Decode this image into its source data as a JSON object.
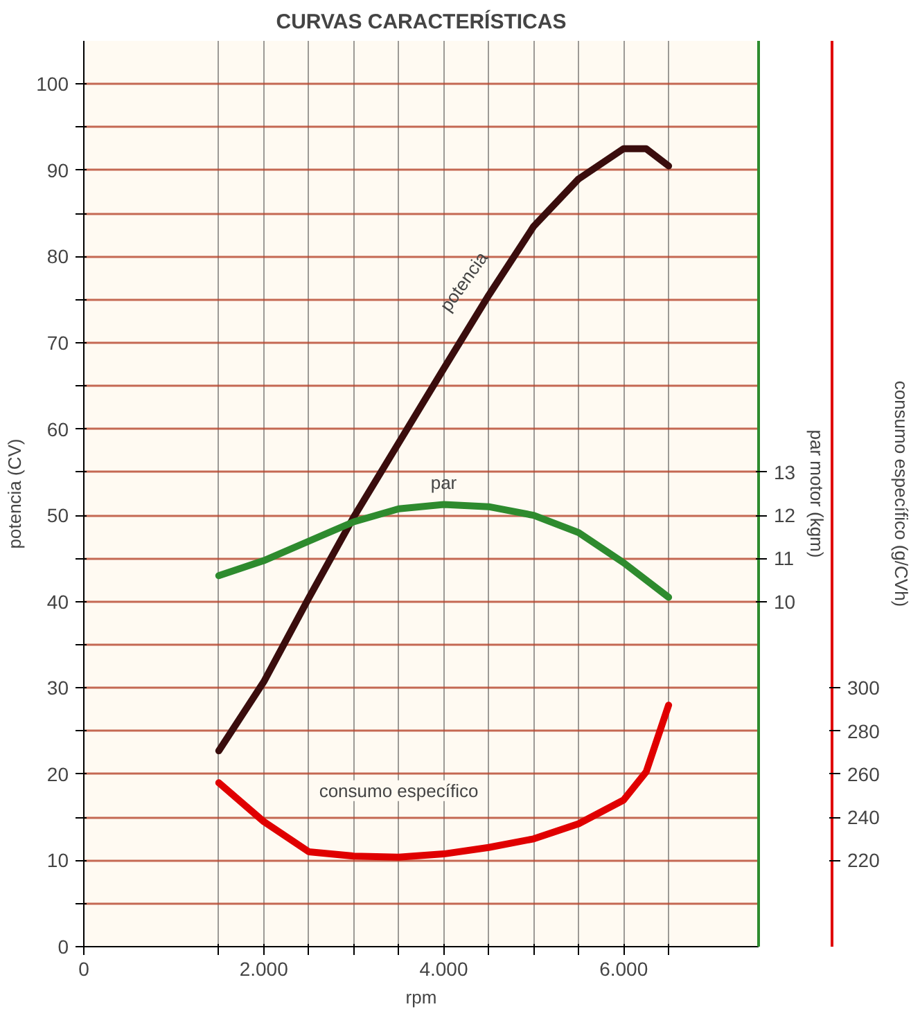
{
  "chart_data": {
    "type": "line",
    "title": "CURVAS CARACTERÍSTICAS",
    "xlabel": "rpm",
    "ylabel": "potencia (CV)",
    "y2label": "par motor (kgm)",
    "y3label": "consumo específico (g/CVh)",
    "xlim": [
      0,
      7500
    ],
    "xticks": [
      0,
      {
        "value": 1500,
        "label": null
      },
      {
        "value": 2000,
        "label": "2.000"
      },
      {
        "value": 2500,
        "label": null
      },
      {
        "value": 3000,
        "label": null
      },
      {
        "value": 3500,
        "label": null
      },
      {
        "value": 4000,
        "label": "4.000"
      },
      {
        "value": 4500,
        "label": null
      },
      {
        "value": 5000,
        "label": null
      },
      {
        "value": 5500,
        "label": null
      },
      {
        "value": 6000,
        "label": "6.000"
      },
      {
        "value": 6500,
        "label": null
      }
    ],
    "ylim": [
      0,
      105
    ],
    "yticks": [
      0,
      {
        "value": 5,
        "label": null
      },
      10,
      {
        "value": 15,
        "label": null
      },
      20,
      {
        "value": 25,
        "label": null
      },
      30,
      {
        "value": 35,
        "label": null
      },
      40,
      {
        "value": 45,
        "label": null
      },
      50,
      {
        "value": 55,
        "label": null
      },
      60,
      {
        "value": 65,
        "label": null
      },
      70,
      {
        "value": 75,
        "label": null
      },
      80,
      {
        "value": 85,
        "label": null
      },
      90,
      {
        "value": 95,
        "label": null
      },
      100
    ],
    "y2lim": [
      2,
      23
    ],
    "y2ticks": [
      10,
      11,
      12,
      13
    ],
    "y3lim": [
      180,
      600
    ],
    "y3ticks": [
      220,
      240,
      260,
      280,
      300
    ],
    "grid": true,
    "marker": "none",
    "line_style": "solid",
    "series": [
      {
        "color": "#3a0d0d",
        "x": [
          1500,
          2000,
          2500,
          3000,
          3500,
          4000,
          4500,
          5000,
          5500,
          6000,
          6250,
          6500
        ],
        "values": [
          22.7,
          30.7,
          40.4,
          49.8,
          58.4,
          67,
          75.5,
          83.5,
          89,
          92.5,
          92.5,
          90.5
        ]
      },
      {
        "color": "#2e8b2e",
        "axis": "y2",
        "x": [
          1500,
          2000,
          2500,
          3000,
          3500,
          4000,
          4500,
          5000,
          5500,
          6000,
          6500
        ],
        "values": [
          10.6,
          10.95,
          11.4,
          11.85,
          12.15,
          12.25,
          12.2,
          12.0,
          11.6,
          10.9,
          10.1
        ]
      },
      {
        "color": "#e00000",
        "axis": "y3",
        "x": [
          1500,
          2000,
          2500,
          3000,
          3500,
          4000,
          4500,
          5000,
          5500,
          6000,
          6250,
          6500
        ],
        "values": [
          256,
          238,
          224,
          222,
          221.5,
          223,
          226,
          230,
          237,
          248,
          261,
          292
        ]
      }
    ],
    "annotations": [
      "potencia",
      "par",
      "consumo específico"
    ]
  }
}
